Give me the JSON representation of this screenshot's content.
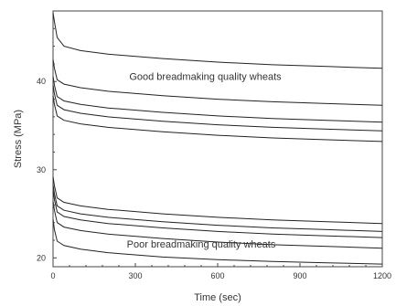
{
  "chart_data": {
    "type": "line",
    "xlabel": "Time (sec)",
    "ylabel": "Stress (MPa)",
    "xlim": [
      0,
      1200
    ],
    "ylim": [
      19,
      48
    ],
    "xticks": [
      0,
      300,
      600,
      900,
      1200
    ],
    "yticks": [
      20,
      30,
      40
    ],
    "grid": false,
    "annotations": [
      {
        "text": "Good breadmaking quality wheats",
        "at": [
          555,
          40.2
        ]
      },
      {
        "text": "Poor breadmaking quality wheats",
        "at": [
          540,
          21.2
        ]
      }
    ],
    "series": [
      {
        "x": [
          0,
          5,
          15,
          40,
          100,
          200,
          400,
          600,
          800,
          1000,
          1200
        ],
        "y": [
          47.8,
          46.8,
          45.0,
          44.0,
          43.5,
          43.1,
          42.6,
          42.2,
          41.9,
          41.7,
          41.5
        ]
      },
      {
        "x": [
          0,
          5,
          15,
          40,
          100,
          200,
          400,
          600,
          800,
          1000,
          1200
        ],
        "y": [
          42.5,
          41.5,
          40.2,
          39.7,
          39.3,
          38.9,
          38.4,
          38.0,
          37.7,
          37.5,
          37.3
        ]
      },
      {
        "x": [
          0,
          5,
          15,
          40,
          100,
          200,
          400,
          600,
          800,
          1000,
          1200
        ],
        "y": [
          40.6,
          39.6,
          38.3,
          37.8,
          37.4,
          37.0,
          36.5,
          36.1,
          35.8,
          35.6,
          35.4
        ]
      },
      {
        "x": [
          0,
          5,
          15,
          40,
          100,
          200,
          400,
          600,
          800,
          1000,
          1200
        ],
        "y": [
          39.6,
          38.6,
          37.3,
          36.8,
          36.4,
          36.0,
          35.5,
          35.1,
          34.8,
          34.6,
          34.4
        ]
      },
      {
        "x": [
          0,
          5,
          15,
          40,
          100,
          200,
          400,
          600,
          800,
          1000,
          1200
        ],
        "y": [
          38.4,
          37.4,
          36.1,
          35.6,
          35.2,
          34.8,
          34.3,
          33.9,
          33.6,
          33.4,
          33.2
        ]
      },
      {
        "x": [
          0,
          5,
          15,
          40,
          100,
          200,
          400,
          600,
          800,
          1000,
          1200
        ],
        "y": [
          29.2,
          28.2,
          26.8,
          26.3,
          25.9,
          25.5,
          25.0,
          24.6,
          24.3,
          24.1,
          23.9
        ]
      },
      {
        "x": [
          0,
          5,
          15,
          40,
          100,
          200,
          400,
          600,
          800,
          1000,
          1200
        ],
        "y": [
          28.3,
          27.3,
          25.9,
          25.4,
          25.0,
          24.6,
          24.1,
          23.7,
          23.4,
          23.2,
          23.0
        ]
      },
      {
        "x": [
          0,
          5,
          15,
          40,
          100,
          200,
          400,
          600,
          800,
          1000,
          1200
        ],
        "y": [
          27.6,
          26.6,
          25.2,
          24.7,
          24.3,
          23.9,
          23.4,
          23.0,
          22.7,
          22.5,
          22.3
        ]
      },
      {
        "x": [
          0,
          5,
          15,
          40,
          100,
          200,
          400,
          600,
          800,
          1000,
          1200
        ],
        "y": [
          26.4,
          25.4,
          24.0,
          23.5,
          23.1,
          22.7,
          22.2,
          21.8,
          21.5,
          21.3,
          21.1
        ]
      },
      {
        "x": [
          0,
          5,
          15,
          40,
          100,
          200,
          400,
          600,
          800,
          1000,
          1200
        ],
        "y": [
          24.4,
          23.2,
          21.9,
          21.4,
          21.0,
          20.6,
          20.1,
          19.8,
          19.6,
          19.45,
          19.3
        ]
      }
    ]
  }
}
